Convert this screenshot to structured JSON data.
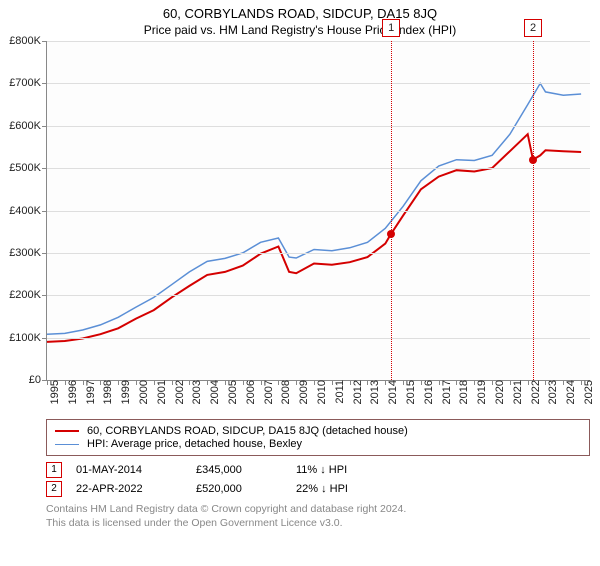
{
  "title": "60, CORBYLANDS ROAD, SIDCUP, DA15 8JQ",
  "subtitle": "Price paid vs. HM Land Registry's House Price Index (HPI)",
  "chart": {
    "type": "line",
    "background_color": "#fdfdfd",
    "grid_color": "#dedede",
    "axis_color": "#888888",
    "label_fontsize": 11,
    "xlim": [
      1995,
      2025.5
    ],
    "ylim": [
      0,
      800
    ],
    "yticks": [
      0,
      100,
      200,
      300,
      400,
      500,
      600,
      700,
      800
    ],
    "ytick_labels": [
      "£0",
      "£100K",
      "£200K",
      "£300K",
      "£400K",
      "£500K",
      "£600K",
      "£700K",
      "£800K"
    ],
    "xticks": [
      1995,
      1996,
      1997,
      1998,
      1999,
      2000,
      2001,
      2002,
      2003,
      2004,
      2005,
      2006,
      2007,
      2008,
      2009,
      2010,
      2011,
      2012,
      2013,
      2014,
      2015,
      2016,
      2017,
      2018,
      2019,
      2020,
      2021,
      2022,
      2023,
      2024,
      2025
    ],
    "series": [
      {
        "name": "property",
        "label": "60, CORBYLANDS ROAD, SIDCUP, DA15 8JQ (detached house)",
        "color": "#d40000",
        "line_width": 2,
        "data": [
          [
            1995,
            90
          ],
          [
            1996,
            92
          ],
          [
            1997,
            98
          ],
          [
            1998,
            108
          ],
          [
            1999,
            122
          ],
          [
            2000,
            145
          ],
          [
            2001,
            165
          ],
          [
            2002,
            195
          ],
          [
            2003,
            222
          ],
          [
            2004,
            248
          ],
          [
            2005,
            255
          ],
          [
            2006,
            270
          ],
          [
            2007,
            298
          ],
          [
            2008,
            315
          ],
          [
            2008.6,
            255
          ],
          [
            2009,
            252
          ],
          [
            2010,
            275
          ],
          [
            2011,
            272
          ],
          [
            2012,
            278
          ],
          [
            2013,
            290
          ],
          [
            2014,
            322
          ],
          [
            2014.33,
            345
          ],
          [
            2015,
            388
          ],
          [
            2016,
            450
          ],
          [
            2017,
            480
          ],
          [
            2018,
            495
          ],
          [
            2019,
            492
          ],
          [
            2020,
            500
          ],
          [
            2021,
            540
          ],
          [
            2022,
            580
          ],
          [
            2022.3,
            520
          ],
          [
            2022.7,
            530
          ],
          [
            2023,
            542
          ],
          [
            2024,
            540
          ],
          [
            2025,
            538
          ]
        ]
      },
      {
        "name": "hpi",
        "label": "HPI: Average price, detached house, Bexley",
        "color": "#5b8fd6",
        "line_width": 1.5,
        "data": [
          [
            1995,
            108
          ],
          [
            1996,
            110
          ],
          [
            1997,
            118
          ],
          [
            1998,
            130
          ],
          [
            1999,
            148
          ],
          [
            2000,
            172
          ],
          [
            2001,
            195
          ],
          [
            2002,
            225
          ],
          [
            2003,
            255
          ],
          [
            2004,
            280
          ],
          [
            2005,
            287
          ],
          [
            2006,
            300
          ],
          [
            2007,
            325
          ],
          [
            2008,
            335
          ],
          [
            2008.6,
            290
          ],
          [
            2009,
            288
          ],
          [
            2010,
            308
          ],
          [
            2011,
            305
          ],
          [
            2012,
            312
          ],
          [
            2013,
            325
          ],
          [
            2014,
            358
          ],
          [
            2015,
            410
          ],
          [
            2016,
            470
          ],
          [
            2017,
            505
          ],
          [
            2018,
            520
          ],
          [
            2019,
            518
          ],
          [
            2020,
            530
          ],
          [
            2021,
            580
          ],
          [
            2022,
            650
          ],
          [
            2022.7,
            700
          ],
          [
            2023,
            680
          ],
          [
            2024,
            672
          ],
          [
            2025,
            675
          ]
        ]
      }
    ],
    "markers": [
      {
        "id": "1",
        "x": 2014.33,
        "y": 345,
        "color": "#d40000"
      },
      {
        "id": "2",
        "x": 2022.3,
        "y": 520,
        "color": "#d40000"
      }
    ]
  },
  "legend": {
    "border_color": "#8b5a5a",
    "items": [
      {
        "color": "#d40000",
        "width": 2,
        "label": "60, CORBYLANDS ROAD, SIDCUP, DA15 8JQ (detached house)"
      },
      {
        "color": "#5b8fd6",
        "width": 1.5,
        "label": "HPI: Average price, detached house, Bexley"
      }
    ]
  },
  "sales": [
    {
      "id": "1",
      "color": "#d40000",
      "date": "01-MAY-2014",
      "price": "£345,000",
      "diff": "11% ↓ HPI"
    },
    {
      "id": "2",
      "color": "#d40000",
      "date": "22-APR-2022",
      "price": "£520,000",
      "diff": "22% ↓ HPI"
    }
  ],
  "footer": {
    "line1": "Contains HM Land Registry data © Crown copyright and database right 2024.",
    "line2": "This data is licensed under the Open Government Licence v3.0."
  }
}
